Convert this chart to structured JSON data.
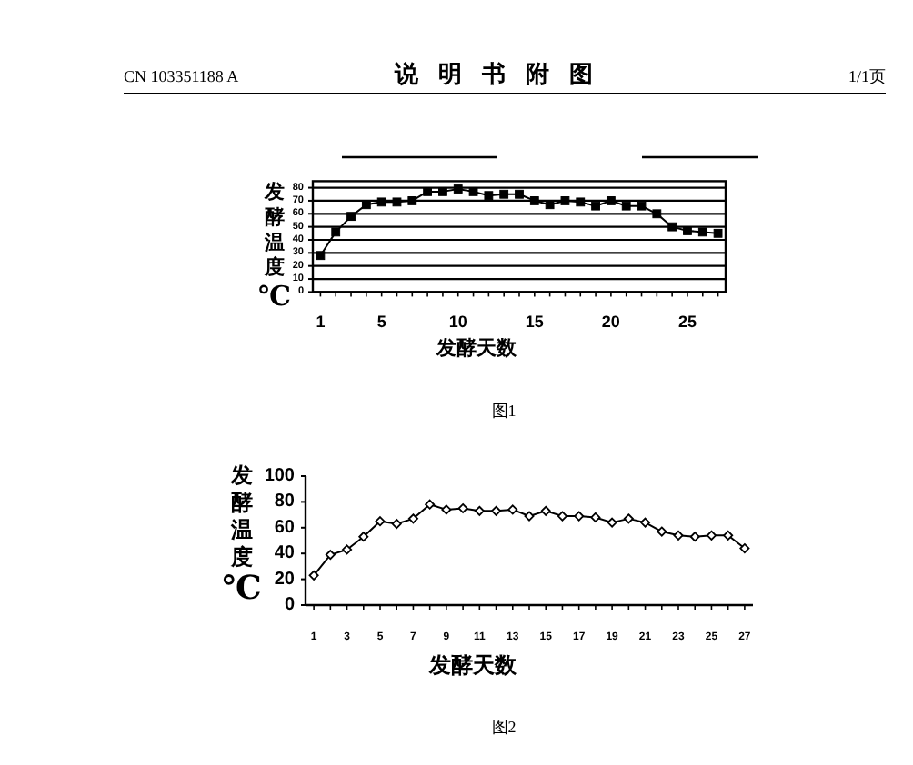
{
  "chart_data": [
    {
      "type": "line",
      "x": [
        1,
        2,
        3,
        4,
        5,
        6,
        7,
        8,
        9,
        10,
        11,
        12,
        13,
        14,
        15,
        16,
        17,
        18,
        19,
        20,
        21,
        22,
        23,
        24,
        25,
        26,
        27
      ],
      "values": [
        28,
        46,
        58,
        67,
        69,
        69,
        70,
        77,
        77,
        79,
        77,
        74,
        75,
        75,
        70,
        67,
        70,
        69,
        66,
        70,
        66,
        66,
        60,
        50,
        47,
        46,
        45
      ],
      "color": "#000000",
      "marker": "square",
      "xlim": [
        0.5,
        27.5
      ],
      "xticks": [
        1,
        {
          "value": 2,
          "label": null
        },
        {
          "value": 3,
          "label": null
        },
        {
          "value": 4,
          "label": null
        },
        5,
        {
          "value": 6,
          "label": null
        },
        {
          "value": 7,
          "label": null
        },
        {
          "value": 8,
          "label": null
        },
        {
          "value": 9,
          "label": null
        },
        10,
        {
          "value": 11,
          "label": null
        },
        {
          "value": 12,
          "label": null
        },
        {
          "value": 13,
          "label": null
        },
        {
          "value": 14,
          "label": null
        },
        15,
        {
          "value": 16,
          "label": null
        },
        {
          "value": 17,
          "label": null
        },
        {
          "value": 18,
          "label": null
        },
        {
          "value": 19,
          "label": null
        },
        20,
        {
          "value": 21,
          "label": null
        },
        {
          "value": 22,
          "label": null
        },
        {
          "value": 23,
          "label": null
        },
        {
          "value": 24,
          "label": null
        },
        25,
        {
          "value": 26,
          "label": null
        },
        {
          "value": 27,
          "label": null
        }
      ],
      "ylim": [
        0,
        85
      ],
      "yticks": [
        0,
        10,
        20,
        30,
        40,
        50,
        60,
        70,
        80
      ],
      "grid": "y",
      "xlabel": "发酵天数",
      "ylabel": "发酵温度℃",
      "annotations": [
        "CN 103351188 A",
        "说明书附图",
        "1/1页",
        "图1"
      ]
    },
    {
      "type": "line",
      "x": [
        1,
        2,
        3,
        4,
        5,
        6,
        7,
        8,
        9,
        10,
        11,
        12,
        13,
        14,
        15,
        16,
        17,
        18,
        19,
        20,
        21,
        22,
        23,
        24,
        25,
        26,
        27
      ],
      "values": [
        23,
        39,
        43,
        53,
        65,
        63,
        67,
        78,
        74,
        75,
        73,
        73,
        74,
        69,
        73,
        69,
        69,
        68,
        64,
        67,
        64,
        57,
        54,
        53,
        54,
        54,
        44
      ],
      "color": "#000000",
      "marker": "diamond",
      "xlim": [
        0.5,
        27.5
      ],
      "xticks": [
        1,
        {
          "value": 2,
          "label": null
        },
        3,
        {
          "value": 4,
          "label": null
        },
        5,
        {
          "value": 6,
          "label": null
        },
        7,
        {
          "value": 8,
          "label": null
        },
        9,
        {
          "value": 10,
          "label": null
        },
        11,
        {
          "value": 12,
          "label": null
        },
        13,
        {
          "value": 14,
          "label": null
        },
        15,
        {
          "value": 16,
          "label": null
        },
        17,
        {
          "value": 18,
          "label": null
        },
        19,
        {
          "value": 20,
          "label": null
        },
        21,
        {
          "value": 22,
          "label": null
        },
        23,
        {
          "value": 24,
          "label": null
        },
        25,
        {
          "value": 26,
          "label": null
        },
        27
      ],
      "ylim": [
        0,
        100
      ],
      "yticks": [
        0,
        20,
        40,
        60,
        80,
        100
      ],
      "xlabel": "发酵天数",
      "ylabel": "发酵温度℃",
      "annotations": [
        "图2"
      ]
    }
  ]
}
